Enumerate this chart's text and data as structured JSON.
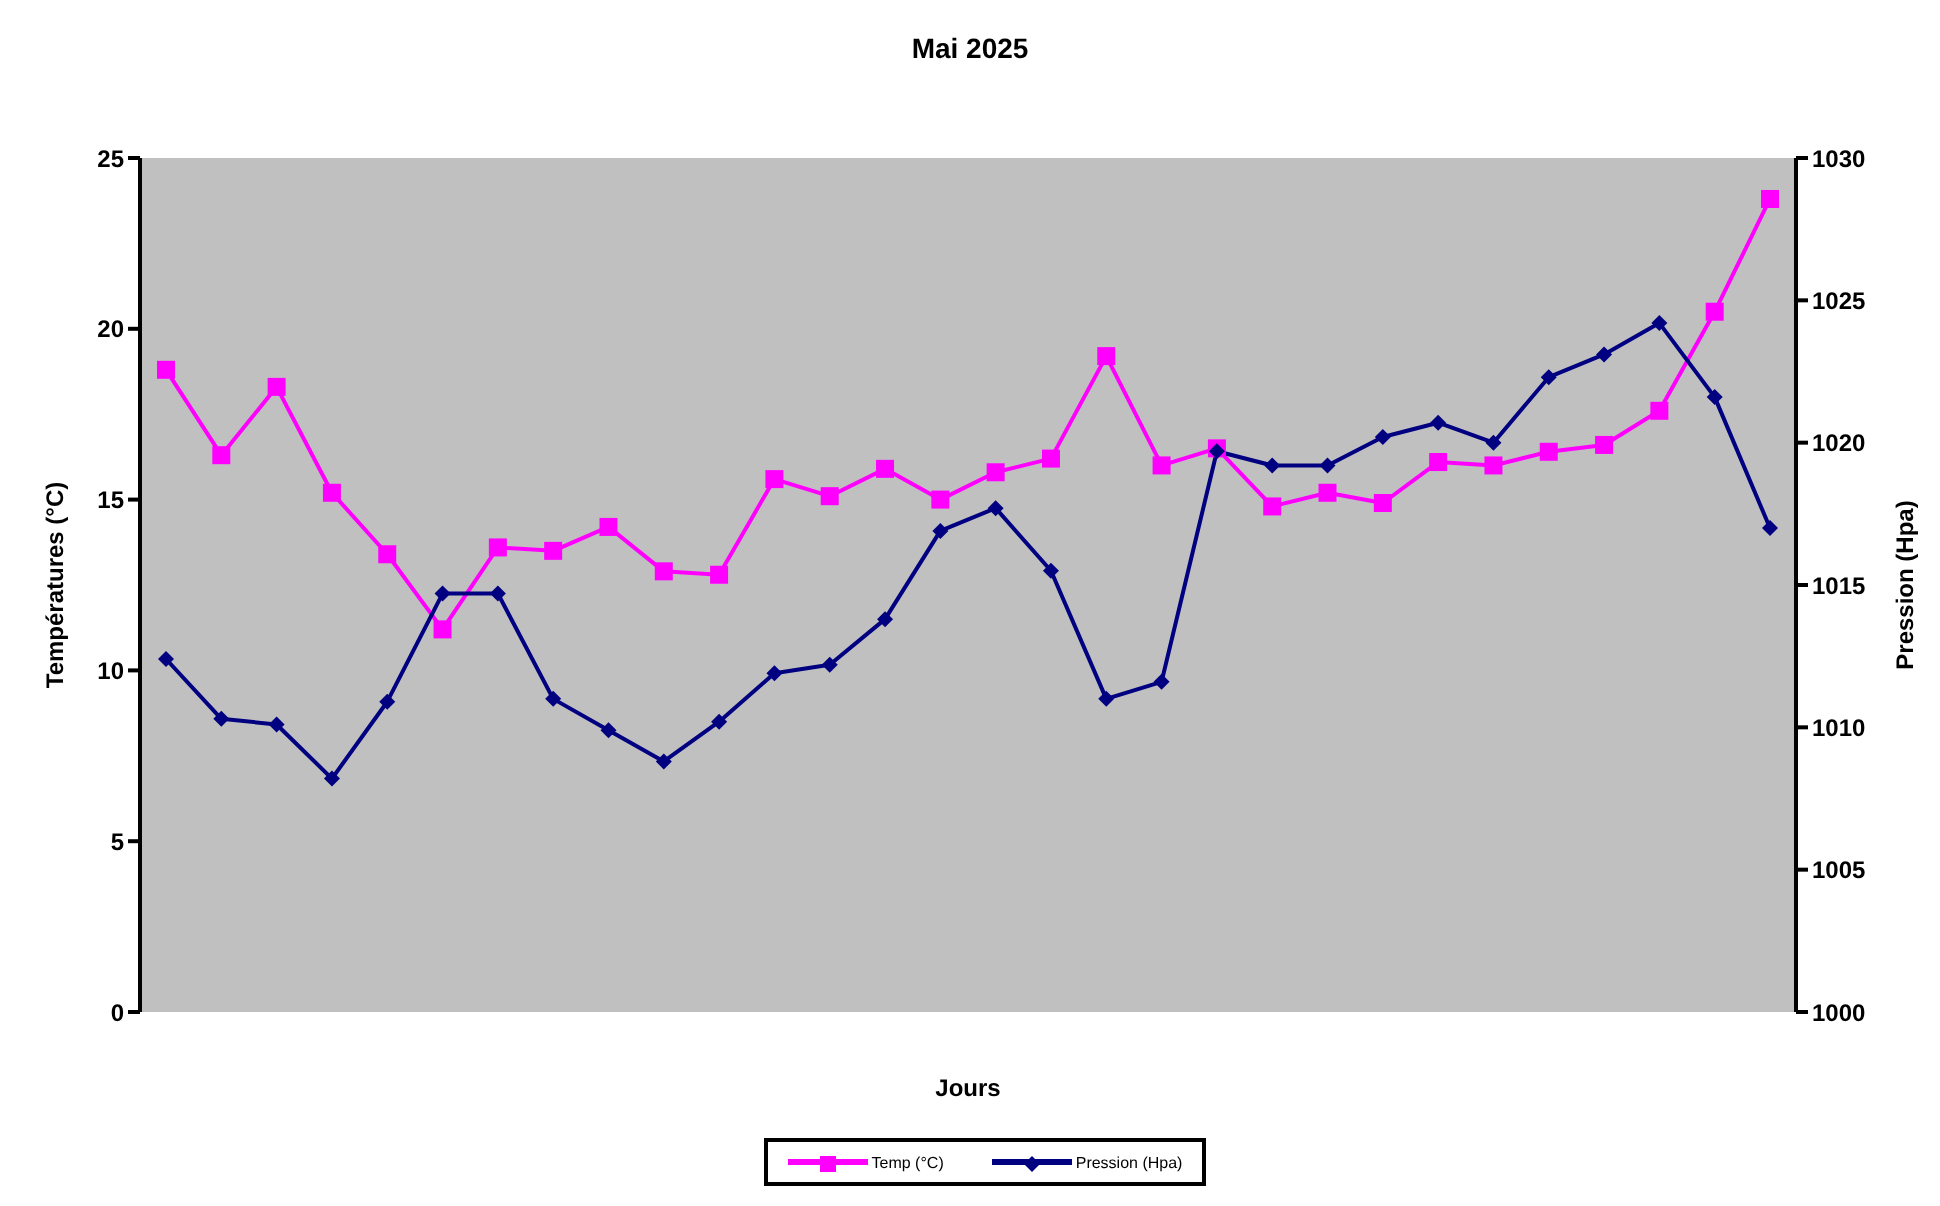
{
  "chart_data": {
    "type": "line",
    "title": "Mai 2025",
    "xlabel": "Jours",
    "ylabel": "Températures (°C)",
    "y2label": "Pression (Hpa)",
    "categories": [
      null,
      null,
      null,
      null,
      null,
      null,
      null,
      null,
      null,
      null,
      null,
      null,
      null,
      null,
      null,
      null,
      null,
      null,
      null,
      null,
      null,
      null,
      null,
      null,
      null,
      null,
      null,
      null,
      null,
      null
    ],
    "series": [
      {
        "name": "Temp (°C)",
        "color": "#ff00ff",
        "marker": "square",
        "values": [
          18.8,
          16.3,
          18.3,
          15.2,
          13.4,
          11.2,
          13.6,
          13.5,
          14.2,
          12.9,
          12.8,
          15.6,
          15.1,
          15.9,
          15.0,
          15.8,
          16.2,
          19.2,
          16.0,
          16.5,
          14.8,
          15.2,
          14.9,
          16.1,
          16.0,
          16.4,
          16.6,
          17.6,
          20.5,
          23.8
        ]
      },
      {
        "name": "Pression (Hpa)",
        "color": "#000080",
        "marker": "diamond",
        "axis": "y2",
        "values": [
          1012.4,
          1010.3,
          1010.1,
          1008.2,
          1010.9,
          1014.7,
          1014.7,
          1011.0,
          1009.9,
          1008.8,
          1010.2,
          1011.9,
          1012.2,
          1013.8,
          1016.9,
          1017.7,
          1015.5,
          1011.0,
          1011.6,
          1019.7,
          1019.2,
          1019.2,
          1020.2,
          1020.7,
          1020.0,
          1022.3,
          1023.1,
          1024.2,
          1021.6,
          1017.0
        ]
      }
    ],
    "ylim": [
      0,
      25
    ],
    "yticks": [
      0,
      5,
      10,
      15,
      20,
      25
    ],
    "y2lim": [
      1000,
      1030
    ],
    "y2ticks": [
      1000,
      1005,
      1010,
      1015,
      1020,
      1025,
      1030
    ],
    "tick_labels": "y",
    "grid": false,
    "legend": "bottom"
  }
}
